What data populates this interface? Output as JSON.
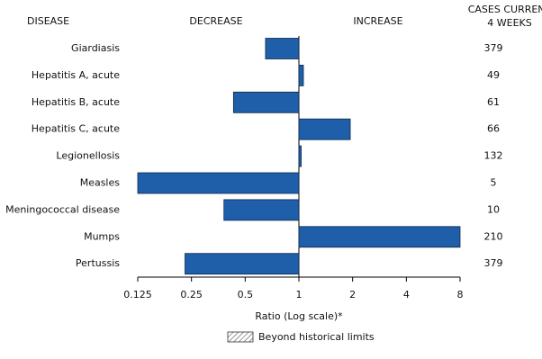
{
  "chart_data": {
    "type": "bar",
    "orientation": "horizontal",
    "log_scale": true,
    "baseline": 1,
    "headers": {
      "disease": "DISEASE",
      "decrease": "DECREASE",
      "increase": "INCREASE",
      "cases": [
        "CASES CURRENT",
        "4 WEEKS"
      ]
    },
    "categories": [
      "Giardiasis",
      "Hepatitis A, acute",
      "Hepatitis B, acute",
      "Hepatitis C, acute",
      "Legionellosis",
      "Measles",
      "Meningococcal disease",
      "Mumps",
      "Pertussis"
    ],
    "values": [
      0.65,
      1.06,
      0.43,
      1.94,
      1.03,
      0.125,
      0.38,
      8,
      0.23
    ],
    "cases": [
      379,
      49,
      61,
      66,
      132,
      5,
      10,
      210,
      379
    ],
    "color": "#1f5ea8",
    "edge_color": "#0d2a4d",
    "xlim": [
      0.125,
      8
    ],
    "xticks": [
      0.125,
      0.25,
      0.5,
      1,
      2,
      4,
      8
    ],
    "x_label": "Ratio (Log scale)*",
    "legend": {
      "label": "Beyond historical limits"
    }
  }
}
